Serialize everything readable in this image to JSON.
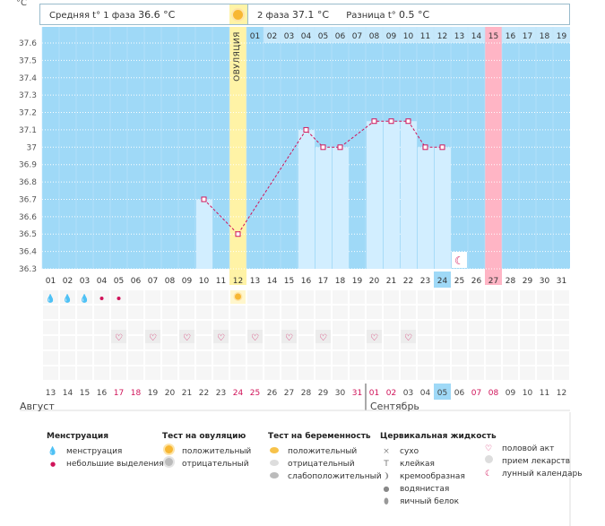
{
  "header": {
    "unit": "°C",
    "phase1_label": "Средняя t° 1 фаза",
    "phase1_value": "36.6 °C",
    "phase2_label": "2 фаза",
    "phase2_value": "37.1 °C",
    "diff_label": "Разница t°",
    "diff_value": "0.5 °C",
    "ovulation_label": "ОВУЛЯЦИЯ"
  },
  "top_cycle_days": [
    "01",
    "02",
    "03",
    "04",
    "05",
    "06",
    "07",
    "08",
    "09",
    "10",
    "11",
    "12",
    "13",
    "14",
    "15",
    "16",
    "17",
    "18",
    "19"
  ],
  "cycle_days": [
    "01",
    "02",
    "03",
    "04",
    "05",
    "06",
    "07",
    "08",
    "09",
    "10",
    "11",
    "12",
    "13",
    "14",
    "15",
    "16",
    "17",
    "18",
    "19",
    "20",
    "21",
    "22",
    "23",
    "24",
    "25",
    "26",
    "27",
    "28",
    "29",
    "30",
    "31"
  ],
  "dates": [
    "13",
    "14",
    "15",
    "16",
    "17",
    "18",
    "19",
    "20",
    "21",
    "22",
    "23",
    "24",
    "25",
    "26",
    "27",
    "28",
    "29",
    "30",
    "31",
    "01",
    "02",
    "03",
    "04",
    "05",
    "06",
    "07",
    "08",
    "09",
    "10",
    "11",
    "12"
  ],
  "date_colors": [
    "#444",
    "#444",
    "#444",
    "#444",
    "#d0145a",
    "#d0145a",
    "#444",
    "#444",
    "#444",
    "#444",
    "#444",
    "#d0145a",
    "#d0145a",
    "#444",
    "#444",
    "#444",
    "#444",
    "#444",
    "#d0145a",
    "#d0145a",
    "#d0145a",
    "#444",
    "#444",
    "#444",
    "#444",
    "#d0145a",
    "#d0145a",
    "#444",
    "#444",
    "#444",
    "#444"
  ],
  "months": {
    "left": "Август",
    "right": "Сентябрь"
  },
  "chart_data": {
    "type": "line",
    "title": "",
    "ylabel": "°C",
    "ylim": [
      36.3,
      37.6
    ],
    "yticks": [
      "37.6",
      "37.5",
      "37.4",
      "37.3",
      "37.2",
      "37.1",
      "37",
      "36.9",
      "36.8",
      "36.7",
      "36.6",
      "36.5",
      "36.4",
      "36.3"
    ],
    "points": [
      {
        "day": 10,
        "value": 36.7
      },
      {
        "day": 12,
        "value": 36.5
      },
      {
        "day": 16,
        "value": 37.1
      },
      {
        "day": 17,
        "value": 37.0
      },
      {
        "day": 18,
        "value": 37.0
      },
      {
        "day": 20,
        "value": 37.15
      },
      {
        "day": 21,
        "value": 37.15
      },
      {
        "day": 22,
        "value": 37.15
      },
      {
        "day": 23,
        "value": 37.0
      },
      {
        "day": 24,
        "value": 37.0
      }
    ],
    "ovulation_day": 12,
    "highlight_day": 27,
    "today_day": 24,
    "lunar_day": 25,
    "colors": {
      "bg": "#9fd9f7",
      "bar": "#d2eeff",
      "ovulation": "#fff3a6",
      "highlight": "#ffb5c5",
      "line": "#d0145a"
    }
  },
  "markers": {
    "menstruation_days": [
      1,
      2,
      3
    ],
    "spotting_days": [
      4,
      5
    ],
    "ovulation_test_days": [
      12
    ],
    "intercourse_days": [
      5,
      7,
      9,
      11,
      13,
      15,
      17,
      20,
      22
    ]
  },
  "legend": {
    "menstruation": {
      "title": "Менструация",
      "items": [
        "менструация",
        "небольшие выделения"
      ]
    },
    "ovulation_test": {
      "title": "Тест на овуляцию",
      "items": [
        "положительный",
        "отрицательный"
      ]
    },
    "pregnancy_test": {
      "title": "Тест на беременность",
      "items": [
        "положительный",
        "отрицательный",
        "слабоположительный"
      ]
    },
    "cervical": {
      "title": "Цервикальная жидкость",
      "items": [
        "сухо",
        "клейкая",
        "кремообразная",
        "водянистая",
        "яичный белок"
      ]
    },
    "other": {
      "items": [
        "половой акт",
        "прием лекарств",
        "лунный календарь"
      ]
    }
  }
}
